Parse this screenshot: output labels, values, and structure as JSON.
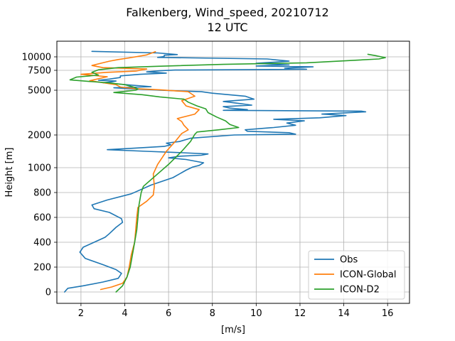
{
  "chart_data": {
    "type": "line",
    "title": "Falkenberg, Wind_speed, 20210712",
    "subtitle": "12 UTC",
    "xlabel": "[m/s]",
    "ylabel": "Height [m]",
    "xlim": [
      0.9,
      17.0
    ],
    "xticks": [
      2,
      4,
      6,
      8,
      10,
      12,
      14,
      16
    ],
    "yticks": [
      {
        "label": "0",
        "height": 0
      },
      {
        "label": "200",
        "height": 200
      },
      {
        "label": "400",
        "height": 400
      },
      {
        "label": "600",
        "height": 600
      },
      {
        "label": "800",
        "height": 800
      },
      {
        "label": "1000",
        "height": 1000
      },
      {
        "label": "2000",
        "height": 2000
      },
      {
        "label": "5000",
        "height": 5000
      },
      {
        "label": "7500",
        "height": 7500
      },
      {
        "label": "10000",
        "height": 10000
      }
    ],
    "grid": true,
    "legend_position": "lower right",
    "series": [
      {
        "name": "Obs",
        "color": "#1f77b4",
        "points": [
          [
            1.25,
            0
          ],
          [
            1.4,
            30
          ],
          [
            2.1,
            50
          ],
          [
            3.0,
            80
          ],
          [
            3.7,
            110
          ],
          [
            3.85,
            150
          ],
          [
            3.6,
            180
          ],
          [
            3.0,
            220
          ],
          [
            2.2,
            270
          ],
          [
            1.95,
            320
          ],
          [
            2.1,
            360
          ],
          [
            2.6,
            400
          ],
          [
            3.1,
            440
          ],
          [
            3.3,
            470
          ],
          [
            3.6,
            520
          ],
          [
            3.9,
            560
          ],
          [
            3.85,
            590
          ],
          [
            3.3,
            640
          ],
          [
            2.6,
            670
          ],
          [
            2.5,
            700
          ],
          [
            3.2,
            740
          ],
          [
            4.3,
            790
          ],
          [
            5.2,
            860
          ],
          [
            6.2,
            920
          ],
          [
            6.8,
            980
          ],
          [
            7.1,
            1020
          ],
          [
            7.4,
            1070
          ],
          [
            7.6,
            1150
          ],
          [
            6.8,
            1250
          ],
          [
            6.0,
            1300
          ],
          [
            6.5,
            1350
          ],
          [
            7.5,
            1380
          ],
          [
            7.8,
            1420
          ],
          [
            6.5,
            1460
          ],
          [
            5.0,
            1500
          ],
          [
            3.2,
            1550
          ],
          [
            4.5,
            1600
          ],
          [
            5.8,
            1650
          ],
          [
            6.1,
            1700
          ],
          [
            5.9,
            1750
          ],
          [
            6.5,
            1800
          ],
          [
            7.0,
            1900
          ],
          [
            9.0,
            2000
          ],
          [
            11.8,
            2050
          ],
          [
            11.5,
            2150
          ],
          [
            9.6,
            2250
          ],
          [
            9.5,
            2350
          ],
          [
            10.8,
            2500
          ],
          [
            11.8,
            2650
          ],
          [
            11.4,
            2800
          ],
          [
            12.2,
            2950
          ],
          [
            10.8,
            3050
          ],
          [
            12.9,
            3150
          ],
          [
            14.1,
            3300
          ],
          [
            13.0,
            3400
          ],
          [
            15.0,
            3550
          ],
          [
            14.8,
            3600
          ],
          [
            8.5,
            3650
          ],
          [
            9.6,
            3700
          ],
          [
            8.8,
            3800
          ],
          [
            8.5,
            3900
          ],
          [
            9.8,
            4000
          ],
          [
            9.3,
            4100
          ],
          [
            8.5,
            4250
          ],
          [
            9.9,
            4400
          ],
          [
            9.5,
            4600
          ],
          [
            8.0,
            4800
          ],
          [
            7.5,
            4900
          ],
          [
            5.6,
            5000
          ],
          [
            5.0,
            5100
          ],
          [
            4.2,
            5200
          ],
          [
            3.5,
            5300
          ],
          [
            5.2,
            5450
          ],
          [
            4.5,
            5600
          ],
          [
            3.6,
            5800
          ],
          [
            3.0,
            5950
          ],
          [
            3.4,
            6050
          ],
          [
            3.6,
            6150
          ],
          [
            2.8,
            6250
          ],
          [
            3.3,
            6400
          ],
          [
            3.8,
            6600
          ],
          [
            3.8,
            6800
          ],
          [
            4.7,
            7000
          ],
          [
            5.9,
            7150
          ],
          [
            5.0,
            7300
          ],
          [
            5.6,
            7450
          ],
          [
            6.3,
            7550
          ],
          [
            12.3,
            7700
          ],
          [
            11.3,
            7900
          ],
          [
            12.6,
            8150
          ],
          [
            10.0,
            8300
          ],
          [
            11.5,
            8500
          ],
          [
            10.0,
            8800
          ],
          [
            11.5,
            9200
          ],
          [
            10.5,
            9600
          ],
          [
            5.5,
            9900
          ],
          [
            5.8,
            10050
          ],
          [
            5.8,
            10250
          ],
          [
            6.4,
            10350
          ],
          [
            5.5,
            10600
          ],
          [
            2.5,
            10850
          ]
        ]
      },
      {
        "name": "ICON-Global",
        "color": "#ff7f0e",
        "points": [
          [
            2.9,
            20
          ],
          [
            3.4,
            40
          ],
          [
            3.9,
            70
          ],
          [
            4.1,
            120
          ],
          [
            4.2,
            200
          ],
          [
            4.3,
            300
          ],
          [
            4.45,
            400
          ],
          [
            4.5,
            500
          ],
          [
            4.55,
            600
          ],
          [
            4.6,
            680
          ],
          [
            5.0,
            730
          ],
          [
            5.3,
            780
          ],
          [
            5.35,
            850
          ],
          [
            5.3,
            950
          ],
          [
            5.5,
            1100
          ],
          [
            5.7,
            1300
          ],
          [
            5.9,
            1500
          ],
          [
            6.3,
            1800
          ],
          [
            6.6,
            2100
          ],
          [
            6.9,
            2350
          ],
          [
            6.7,
            2650
          ],
          [
            6.6,
            2900
          ],
          [
            6.4,
            3100
          ],
          [
            7.2,
            3400
          ],
          [
            7.4,
            3700
          ],
          [
            6.8,
            3950
          ],
          [
            6.6,
            4300
          ],
          [
            7.2,
            4600
          ],
          [
            6.9,
            4900
          ],
          [
            5.6,
            5050
          ],
          [
            4.5,
            5200
          ],
          [
            3.8,
            5400
          ],
          [
            3.6,
            5700
          ],
          [
            2.4,
            6200
          ],
          [
            3.2,
            6700
          ],
          [
            2.0,
            7000
          ],
          [
            3.2,
            7250
          ],
          [
            4.5,
            7400
          ],
          [
            5.0,
            7750
          ],
          [
            3.0,
            8000
          ],
          [
            2.5,
            8400
          ],
          [
            2.9,
            8800
          ],
          [
            3.3,
            9200
          ],
          [
            3.7,
            9500
          ],
          [
            4.2,
            9800
          ],
          [
            5.0,
            10300
          ],
          [
            5.4,
            10800
          ]
        ]
      },
      {
        "name": "ICON-D2",
        "color": "#2ca02c",
        "points": [
          [
            3.6,
            0
          ],
          [
            3.9,
            50
          ],
          [
            4.1,
            120
          ],
          [
            4.25,
            200
          ],
          [
            4.35,
            300
          ],
          [
            4.45,
            400
          ],
          [
            4.55,
            500
          ],
          [
            4.6,
            600
          ],
          [
            4.65,
            700
          ],
          [
            4.75,
            800
          ],
          [
            4.85,
            850
          ],
          [
            5.5,
            950
          ],
          [
            6.0,
            1100
          ],
          [
            6.3,
            1300
          ],
          [
            6.6,
            1500
          ],
          [
            7.0,
            1800
          ],
          [
            7.2,
            2050
          ],
          [
            7.3,
            2200
          ],
          [
            8.3,
            2350
          ],
          [
            9.2,
            2500
          ],
          [
            8.8,
            2700
          ],
          [
            8.6,
            2950
          ],
          [
            8.2,
            3200
          ],
          [
            7.8,
            3500
          ],
          [
            7.7,
            3750
          ],
          [
            7.3,
            3950
          ],
          [
            6.9,
            4200
          ],
          [
            6.7,
            4400
          ],
          [
            5.6,
            4550
          ],
          [
            4.8,
            4700
          ],
          [
            3.5,
            4850
          ],
          [
            4.5,
            5000
          ],
          [
            4.6,
            5150
          ],
          [
            4.4,
            5400
          ],
          [
            4.0,
            5700
          ],
          [
            3.2,
            5950
          ],
          [
            2.4,
            6100
          ],
          [
            1.5,
            6300
          ],
          [
            1.8,
            6650
          ],
          [
            2.8,
            6900
          ],
          [
            2.5,
            7250
          ],
          [
            2.8,
            7600
          ],
          [
            3.7,
            8000
          ],
          [
            5.5,
            8250
          ],
          [
            8.5,
            8600
          ],
          [
            12.3,
            8900
          ],
          [
            15.6,
            9600
          ],
          [
            15.9,
            9850
          ],
          [
            15.5,
            10150
          ],
          [
            15.1,
            10400
          ]
        ]
      }
    ]
  }
}
